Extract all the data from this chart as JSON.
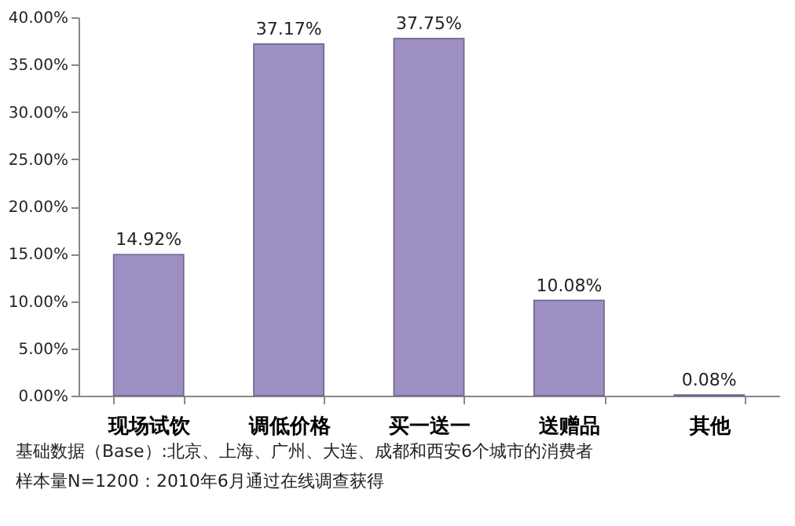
{
  "chart_data": {
    "type": "bar",
    "categories": [
      "现场试饮",
      "调低价格",
      "买一送一",
      "送赠品",
      "其他"
    ],
    "values": [
      14.92,
      37.17,
      37.75,
      10.08,
      0.08
    ],
    "value_labels": [
      "14.92%",
      "37.17%",
      "37.75%",
      "10.08%",
      "0.08%"
    ],
    "color": "#9d8fc2",
    "ylim": [
      0,
      40
    ],
    "yticks": [
      {
        "value": 0,
        "label": "0.00%"
      },
      {
        "value": 5,
        "label": "5.00%"
      },
      {
        "value": 10,
        "label": "10.00%"
      },
      {
        "value": 15,
        "label": "15.00%"
      },
      {
        "value": 20,
        "label": "20.00%"
      },
      {
        "value": 25,
        "label": "25.00%"
      },
      {
        "value": 30,
        "label": "30.00%"
      },
      {
        "value": 35,
        "label": "35.00%"
      },
      {
        "value": 40,
        "label": "40.00%"
      }
    ],
    "grid": false,
    "annotations": [
      "基础数据（Base）:北京、上海、广州、大连、成都和西安6个城市的消费者",
      "样本量N=1200：2010年6月通过在线调查获得"
    ]
  }
}
